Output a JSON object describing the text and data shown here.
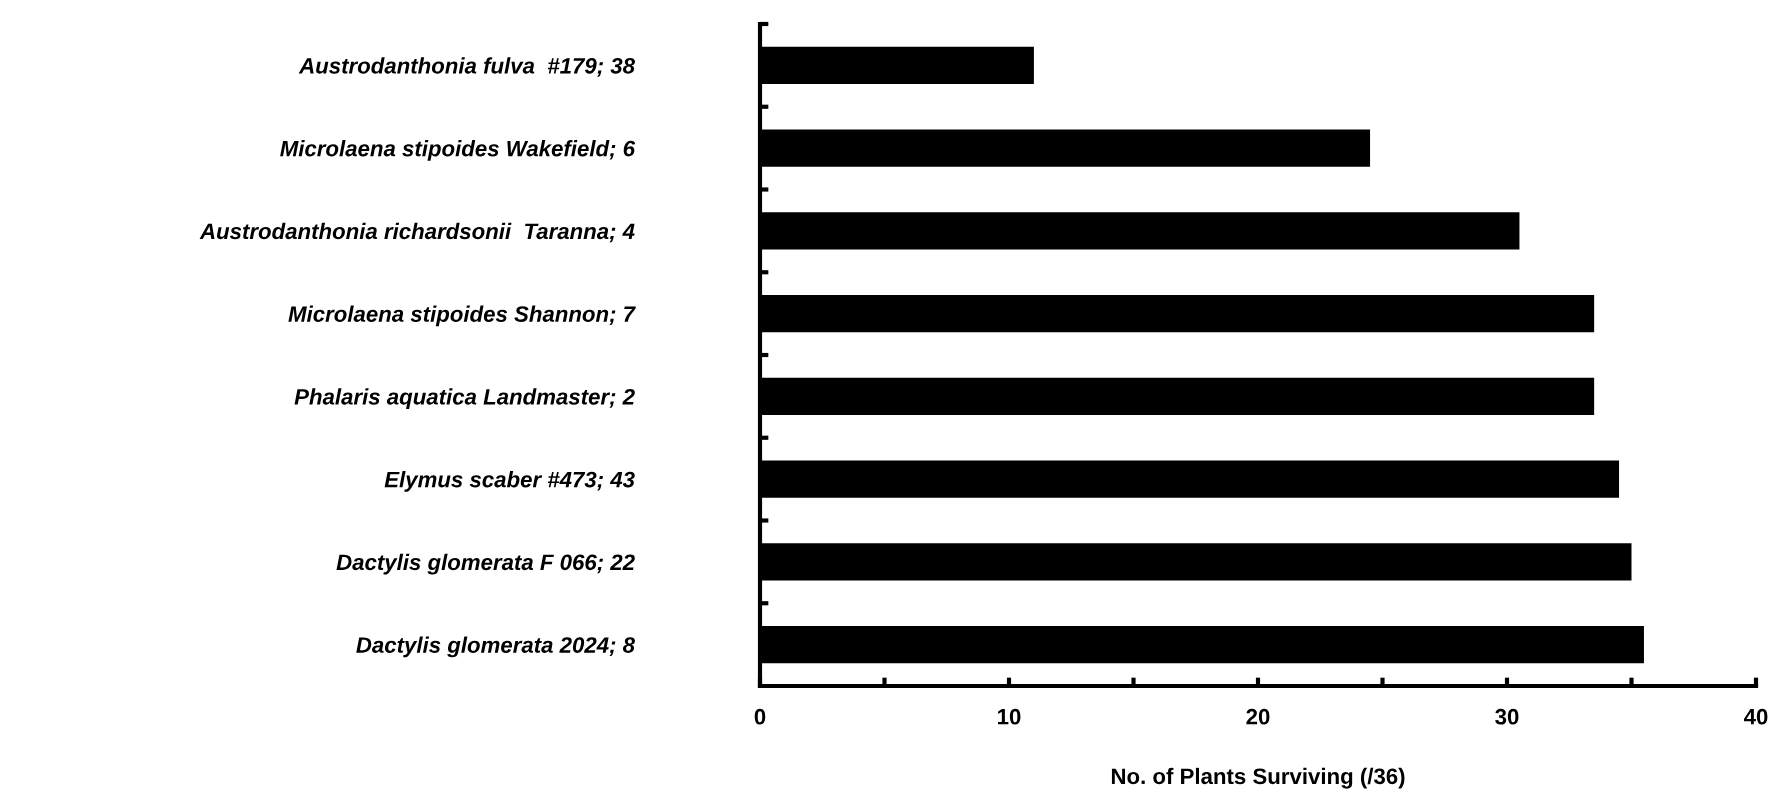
{
  "chart_data": {
    "type": "bar",
    "orientation": "horizontal",
    "xlabel": "No. of Plants Surviving (/36)",
    "categories": [
      "Austrodanthonia fulva  #179; 38",
      "Microlaena stipoides Wakefield; 6",
      "Austrodanthonia richardsonii  Taranna; 4",
      "Microlaena stipoides Shannon; 7",
      "Phalaris aquatica Landmaster; 2",
      "Elymus scaber #473; 43",
      "Dactylis glomerata F 066; 22",
      "Dactylis glomerata 2024; 8"
    ],
    "values": [
      11,
      24.5,
      30.5,
      33.5,
      33.5,
      34.5,
      35,
      35.5
    ],
    "color": "#000000",
    "xlim": [
      0,
      40
    ],
    "xticks": [
      0,
      {
        "value": 5,
        "label": null
      },
      10,
      {
        "value": 15,
        "label": null
      },
      20,
      {
        "value": 25,
        "label": null
      },
      30,
      {
        "value": 35,
        "label": null
      },
      40
    ],
    "grid": false,
    "legend": false
  }
}
